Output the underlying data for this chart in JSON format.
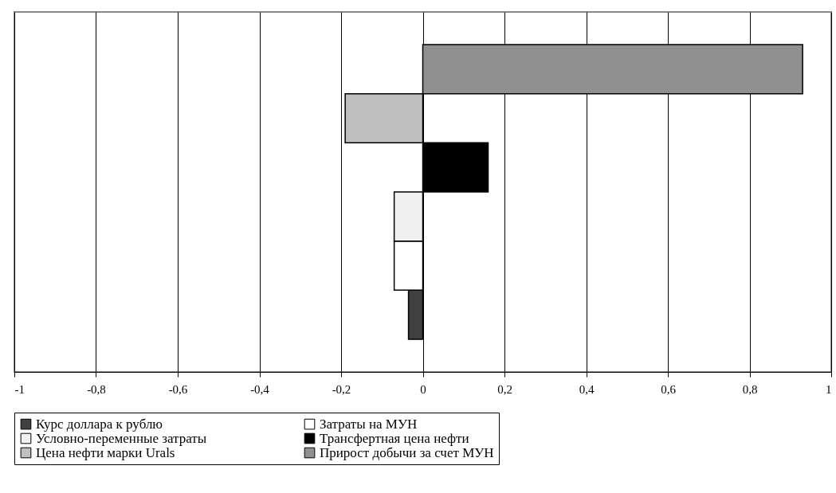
{
  "chart_data": {
    "type": "bar",
    "orientation": "horizontal",
    "categories": [
      null
    ],
    "series": [
      {
        "name": "Курс доллара к рублю",
        "color": "#404040",
        "values": [
          -0.035
        ]
      },
      {
        "name": "Затраты на МУН",
        "color": "#ffffff",
        "values": [
          -0.07
        ]
      },
      {
        "name": "Условно-переменные затраты",
        "color": "#f0f0f0",
        "values": [
          -0.07
        ]
      },
      {
        "name": "Трансфертная цена нефти",
        "color": "#000000",
        "values": [
          0.16
        ]
      },
      {
        "name": "Цена нефти марки Urals",
        "color": "#c0c0c0",
        "values": [
          -0.19
        ]
      },
      {
        "name": "Прирост добычи за счет МУН",
        "color": "#909090",
        "values": [
          0.93
        ]
      }
    ],
    "xlim": [
      -1,
      1
    ],
    "xticks": [
      -1,
      {
        "value": -0.8,
        "label": "-0,8"
      },
      {
        "value": -0.6,
        "label": "-0,6"
      },
      {
        "value": -0.4,
        "label": "-0,4"
      },
      {
        "value": -0.2,
        "label": "-0,2"
      },
      0,
      {
        "value": 0.2,
        "label": "0,2"
      },
      {
        "value": 0.4,
        "label": "0,4"
      },
      {
        "value": 0.6,
        "label": "0,6"
      },
      {
        "value": 0.8,
        "label": "0,8"
      },
      1
    ],
    "grid": "x",
    "legend": "bottom"
  }
}
